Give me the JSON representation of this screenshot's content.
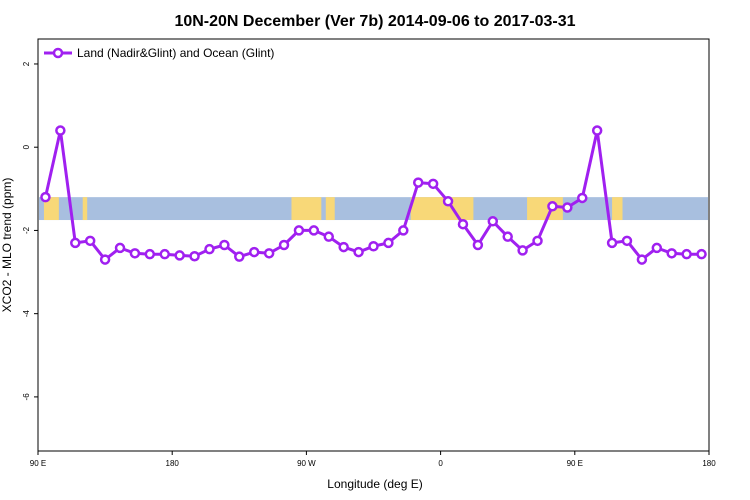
{
  "chart_data": {
    "type": "line",
    "title": "10N-20N December (Ver 7b)   2014-09-06 to 2017-03-31",
    "xlabel": "Longitude (deg E)",
    "ylabel": "XCO2 - MLO trend (ppm)",
    "x_ticks": [
      {
        "pos": 0,
        "label": "90 E"
      },
      {
        "pos": 90,
        "label": "180"
      },
      {
        "pos": 180,
        "label": "90 W"
      },
      {
        "pos": 270,
        "label": "0"
      },
      {
        "pos": 360,
        "label": "90 E"
      },
      {
        "pos": 450,
        "label": "180"
      }
    ],
    "y_ticks": [
      2,
      0,
      -2,
      -4,
      -6
    ],
    "xlim": [
      0,
      450
    ],
    "ylim": [
      -7.3,
      2.6
    ],
    "land_band": {
      "ymin": -1.75,
      "ymax": -1.2,
      "ocean_color": "#a8bfdf",
      "land_color": "#f8d878"
    },
    "series": [
      {
        "name": "Land (Nadir&Glint) and Ocean (Glint)",
        "color": "#a020f0",
        "x": [
          5,
          15,
          25,
          35,
          45,
          55,
          65,
          75,
          85,
          95,
          105,
          115,
          125,
          135,
          145,
          155,
          165,
          175,
          185,
          195,
          205,
          215,
          225,
          235,
          245,
          255,
          265,
          275,
          285,
          295,
          305,
          315,
          325,
          335,
          345,
          355,
          365,
          375,
          385,
          395,
          405,
          415,
          425,
          435,
          445
        ],
        "values": [
          -1.2,
          0.4,
          -2.3,
          -2.25,
          -2.7,
          -2.42,
          -2.55,
          -2.57,
          -2.57,
          -2.6,
          -2.62,
          -2.45,
          -2.35,
          -2.63,
          -2.52,
          -2.55,
          -2.35,
          -2.0,
          -2.0,
          -2.15,
          -2.4,
          -2.52,
          -2.38,
          -2.3,
          -2.0,
          -0.85,
          -0.88,
          -1.3,
          -1.85,
          -2.35,
          -1.78,
          -2.15,
          -2.48,
          -2.25,
          -1.42,
          -1.45,
          -1.22,
          0.4,
          -2.3,
          -2.25,
          -2.7,
          -2.42,
          -2.55,
          -2.57,
          -2.57
        ]
      }
    ]
  }
}
